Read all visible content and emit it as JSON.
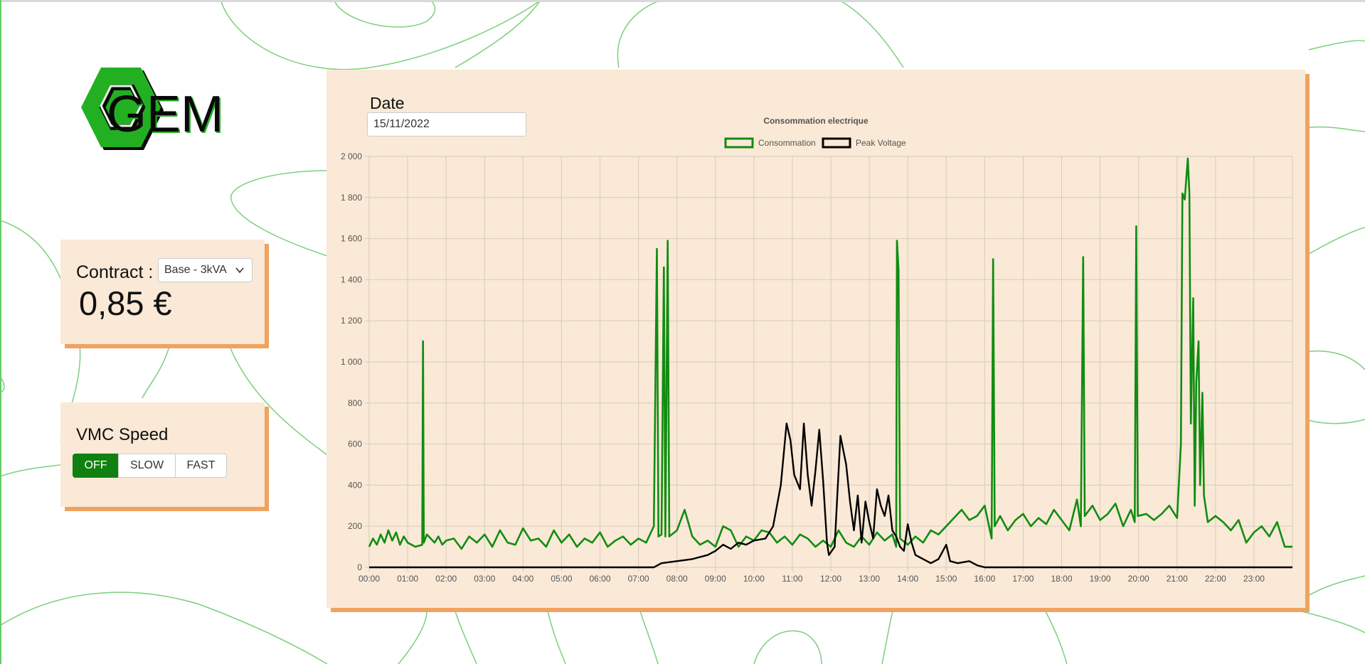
{
  "logo": {
    "text": "GEM"
  },
  "contract": {
    "label": "Contract :",
    "selected": "Base - 3kVA",
    "price": "0,85 €"
  },
  "vmc": {
    "title": "VMC Speed",
    "buttons": [
      {
        "label": "OFF",
        "active": true
      },
      {
        "label": "SLOW",
        "active": false
      },
      {
        "label": "FAST",
        "active": false
      }
    ]
  },
  "date": {
    "label": "Date",
    "value": "15/11/2022"
  },
  "colors": {
    "consommation": "#118c11",
    "peak_voltage": "#000000",
    "card": "#f9e9d6",
    "shadow": "#f0a35e"
  },
  "chart_data": {
    "type": "line",
    "title": "Consommation electrique",
    "legend": "top-center",
    "grid": true,
    "ylim": [
      0,
      2000
    ],
    "y_ticks": [
      "2 000",
      "1 800",
      "1 600",
      "1 400",
      "1 200",
      "1 000",
      "800",
      "600",
      "400",
      "200",
      "0"
    ],
    "x_ticks": [
      "00:00",
      "01:00",
      "02:00",
      "03:00",
      "04:00",
      "05:00",
      "06:00",
      "07:00",
      "08:00",
      "09:00",
      "10:00",
      "11:00",
      "12:00",
      "13:00",
      "14:00",
      "15:00",
      "16:00",
      "17:00",
      "18:00",
      "19:00",
      "20:00",
      "21:00",
      "22:00",
      "23:00"
    ],
    "x_unit": "hours",
    "xlim": [
      0,
      24
    ],
    "series": [
      {
        "name": "Consommation",
        "color": "#118c11",
        "points": [
          [
            0.0,
            100
          ],
          [
            0.1,
            140
          ],
          [
            0.2,
            110
          ],
          [
            0.3,
            160
          ],
          [
            0.4,
            120
          ],
          [
            0.5,
            180
          ],
          [
            0.6,
            130
          ],
          [
            0.7,
            170
          ],
          [
            0.8,
            110
          ],
          [
            0.9,
            150
          ],
          [
            1.0,
            120
          ],
          [
            1.2,
            100
          ],
          [
            1.38,
            110
          ],
          [
            1.4,
            1100
          ],
          [
            1.42,
            120
          ],
          [
            1.5,
            160
          ],
          [
            1.6,
            140
          ],
          [
            1.7,
            120
          ],
          [
            1.8,
            150
          ],
          [
            1.9,
            110
          ],
          [
            2.0,
            130
          ],
          [
            2.2,
            140
          ],
          [
            2.4,
            90
          ],
          [
            2.6,
            150
          ],
          [
            2.8,
            120
          ],
          [
            3.0,
            160
          ],
          [
            3.2,
            100
          ],
          [
            3.4,
            180
          ],
          [
            3.6,
            120
          ],
          [
            3.8,
            110
          ],
          [
            4.0,
            190
          ],
          [
            4.2,
            130
          ],
          [
            4.4,
            140
          ],
          [
            4.6,
            100
          ],
          [
            4.8,
            180
          ],
          [
            5.0,
            120
          ],
          [
            5.2,
            160
          ],
          [
            5.4,
            100
          ],
          [
            5.6,
            140
          ],
          [
            5.8,
            120
          ],
          [
            6.0,
            170
          ],
          [
            6.2,
            100
          ],
          [
            6.4,
            130
          ],
          [
            6.6,
            150
          ],
          [
            6.8,
            110
          ],
          [
            7.0,
            140
          ],
          [
            7.2,
            120
          ],
          [
            7.4,
            200
          ],
          [
            7.48,
            1550
          ],
          [
            7.52,
            150
          ],
          [
            7.6,
            160
          ],
          [
            7.66,
            1460
          ],
          [
            7.7,
            150
          ],
          [
            7.76,
            1590
          ],
          [
            7.8,
            150
          ],
          [
            8.0,
            180
          ],
          [
            8.2,
            280
          ],
          [
            8.4,
            150
          ],
          [
            8.6,
            110
          ],
          [
            8.8,
            130
          ],
          [
            9.0,
            100
          ],
          [
            9.2,
            200
          ],
          [
            9.4,
            180
          ],
          [
            9.6,
            100
          ],
          [
            9.8,
            150
          ],
          [
            10.0,
            130
          ],
          [
            10.2,
            180
          ],
          [
            10.4,
            170
          ],
          [
            10.6,
            120
          ],
          [
            10.8,
            150
          ],
          [
            11.0,
            110
          ],
          [
            11.2,
            160
          ],
          [
            11.4,
            140
          ],
          [
            11.6,
            100
          ],
          [
            11.8,
            130
          ],
          [
            12.0,
            100
          ],
          [
            12.2,
            180
          ],
          [
            12.4,
            120
          ],
          [
            12.6,
            100
          ],
          [
            12.8,
            150
          ],
          [
            13.0,
            110
          ],
          [
            13.2,
            170
          ],
          [
            13.4,
            130
          ],
          [
            13.6,
            160
          ],
          [
            13.7,
            100
          ],
          [
            13.72,
            1590
          ],
          [
            13.76,
            1450
          ],
          [
            13.8,
            140
          ],
          [
            14.0,
            110
          ],
          [
            14.2,
            150
          ],
          [
            14.4,
            120
          ],
          [
            14.6,
            180
          ],
          [
            14.8,
            160
          ],
          [
            15.0,
            200
          ],
          [
            15.2,
            240
          ],
          [
            15.4,
            280
          ],
          [
            15.6,
            230
          ],
          [
            15.8,
            250
          ],
          [
            16.0,
            300
          ],
          [
            16.18,
            140
          ],
          [
            16.22,
            1500
          ],
          [
            16.26,
            200
          ],
          [
            16.4,
            250
          ],
          [
            16.6,
            180
          ],
          [
            16.8,
            230
          ],
          [
            17.0,
            260
          ],
          [
            17.2,
            200
          ],
          [
            17.4,
            240
          ],
          [
            17.6,
            210
          ],
          [
            17.8,
            280
          ],
          [
            18.0,
            230
          ],
          [
            18.2,
            180
          ],
          [
            18.4,
            330
          ],
          [
            18.5,
            200
          ],
          [
            18.56,
            1510
          ],
          [
            18.6,
            250
          ],
          [
            18.8,
            300
          ],
          [
            19.0,
            230
          ],
          [
            19.2,
            260
          ],
          [
            19.4,
            310
          ],
          [
            19.6,
            200
          ],
          [
            19.8,
            280
          ],
          [
            19.9,
            220
          ],
          [
            19.94,
            1660
          ],
          [
            19.98,
            250
          ],
          [
            20.2,
            260
          ],
          [
            20.4,
            230
          ],
          [
            20.6,
            260
          ],
          [
            20.8,
            300
          ],
          [
            21.0,
            240
          ],
          [
            21.1,
            600
          ],
          [
            21.14,
            1820
          ],
          [
            21.2,
            1790
          ],
          [
            21.28,
            1990
          ],
          [
            21.32,
            1820
          ],
          [
            21.36,
            700
          ],
          [
            21.42,
            1310
          ],
          [
            21.46,
            300
          ],
          [
            21.5,
            900
          ],
          [
            21.56,
            1100
          ],
          [
            21.6,
            400
          ],
          [
            21.66,
            850
          ],
          [
            21.7,
            350
          ],
          [
            21.8,
            220
          ],
          [
            22.0,
            250
          ],
          [
            22.2,
            220
          ],
          [
            22.4,
            180
          ],
          [
            22.6,
            230
          ],
          [
            22.8,
            120
          ],
          [
            23.0,
            170
          ],
          [
            23.2,
            200
          ],
          [
            23.4,
            150
          ],
          [
            23.6,
            220
          ],
          [
            23.8,
            100
          ],
          [
            24.0,
            100
          ]
        ]
      },
      {
        "name": "Peak Voltage",
        "color": "#000000",
        "points": [
          [
            0.0,
            0
          ],
          [
            7.4,
            0
          ],
          [
            7.6,
            20
          ],
          [
            8.0,
            30
          ],
          [
            8.4,
            40
          ],
          [
            8.8,
            60
          ],
          [
            9.0,
            80
          ],
          [
            9.2,
            110
          ],
          [
            9.4,
            90
          ],
          [
            9.6,
            120
          ],
          [
            9.8,
            110
          ],
          [
            10.0,
            130
          ],
          [
            10.3,
            140
          ],
          [
            10.5,
            200
          ],
          [
            10.7,
            400
          ],
          [
            10.85,
            700
          ],
          [
            10.95,
            620
          ],
          [
            11.05,
            450
          ],
          [
            11.2,
            380
          ],
          [
            11.3,
            700
          ],
          [
            11.4,
            450
          ],
          [
            11.5,
            300
          ],
          [
            11.6,
            470
          ],
          [
            11.7,
            670
          ],
          [
            11.8,
            420
          ],
          [
            11.9,
            120
          ],
          [
            11.95,
            60
          ],
          [
            12.1,
            100
          ],
          [
            12.25,
            640
          ],
          [
            12.4,
            500
          ],
          [
            12.5,
            320
          ],
          [
            12.6,
            180
          ],
          [
            12.7,
            350
          ],
          [
            12.8,
            120
          ],
          [
            12.9,
            320
          ],
          [
            13.0,
            220
          ],
          [
            13.1,
            140
          ],
          [
            13.2,
            380
          ],
          [
            13.3,
            300
          ],
          [
            13.4,
            250
          ],
          [
            13.5,
            350
          ],
          [
            13.6,
            180
          ],
          [
            13.7,
            150
          ],
          [
            13.8,
            100
          ],
          [
            13.9,
            80
          ],
          [
            14.0,
            210
          ],
          [
            14.1,
            120
          ],
          [
            14.2,
            60
          ],
          [
            14.4,
            40
          ],
          [
            14.6,
            20
          ],
          [
            14.8,
            40
          ],
          [
            15.0,
            110
          ],
          [
            15.1,
            30
          ],
          [
            15.3,
            20
          ],
          [
            15.6,
            30
          ],
          [
            15.8,
            10
          ],
          [
            16.0,
            0
          ],
          [
            24.0,
            0
          ]
        ]
      }
    ]
  }
}
